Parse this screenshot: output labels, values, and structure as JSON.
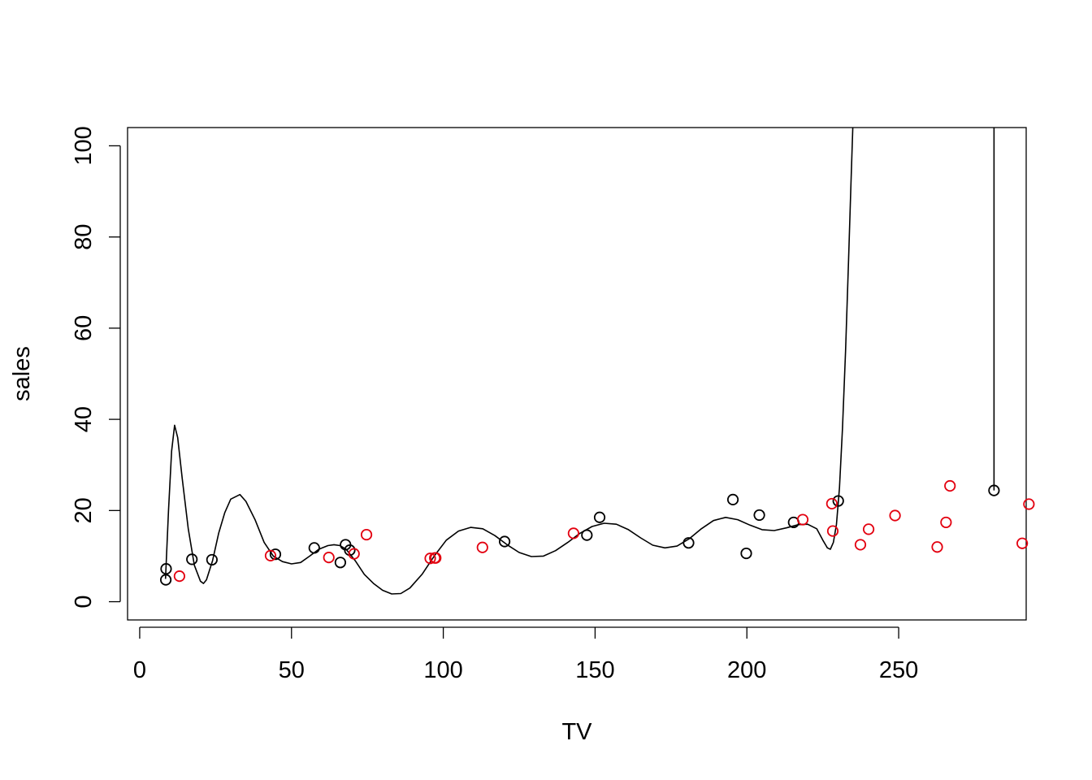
{
  "chart_data": {
    "type": "scatter",
    "title": "",
    "xlabel": "TV",
    "ylabel": "sales",
    "xlim": [
      -4,
      292
    ],
    "ylim": [
      -4,
      104
    ],
    "x_ticks": [
      0,
      50,
      100,
      150,
      200,
      250
    ],
    "y_ticks": [
      0,
      20,
      40,
      60,
      80,
      100
    ],
    "grid": false,
    "legend": "none",
    "series": [
      {
        "color": "#000000",
        "marker": "open-circle",
        "points": [
          [
            8.6,
            4.8
          ],
          [
            8.7,
            7.2
          ],
          [
            17.2,
            9.3
          ],
          [
            23.8,
            9.2
          ],
          [
            44.7,
            10.4
          ],
          [
            57.5,
            11.8
          ],
          [
            66.1,
            8.6
          ],
          [
            67.8,
            12.5
          ],
          [
            69.2,
            11.3
          ],
          [
            120.2,
            13.2
          ],
          [
            147.3,
            14.6
          ],
          [
            151.5,
            18.5
          ],
          [
            180.8,
            12.9
          ],
          [
            195.4,
            22.4
          ],
          [
            199.8,
            10.6
          ],
          [
            204.1,
            19.0
          ],
          [
            215.4,
            17.4
          ],
          [
            230.1,
            22.1
          ],
          [
            281.4,
            24.4
          ]
        ]
      },
      {
        "color": "#e3000f",
        "marker": "open-circle",
        "points": [
          [
            13.1,
            5.6
          ],
          [
            43.1,
            10.1
          ],
          [
            62.3,
            9.7
          ],
          [
            70.6,
            10.5
          ],
          [
            74.7,
            14.7
          ],
          [
            95.7,
            9.5
          ],
          [
            97.2,
            9.6
          ],
          [
            97.5,
            9.6
          ],
          [
            112.9,
            11.9
          ],
          [
            142.9,
            15.0
          ],
          [
            218.4,
            18.0
          ],
          [
            228.0,
            21.5
          ],
          [
            228.3,
            15.5
          ],
          [
            237.4,
            12.5
          ],
          [
            240.1,
            15.9
          ],
          [
            248.8,
            18.9
          ],
          [
            262.7,
            12.0
          ],
          [
            265.6,
            17.4
          ],
          [
            266.9,
            25.4
          ],
          [
            290.7,
            12.8
          ],
          [
            292.9,
            21.4
          ]
        ]
      }
    ],
    "fitted_curve": [
      [
        8.5,
        5.0
      ],
      [
        9.5,
        20.0
      ],
      [
        10.5,
        33.0
      ],
      [
        11.5,
        38.7
      ],
      [
        12.5,
        36.0
      ],
      [
        14.0,
        27.0
      ],
      [
        16.0,
        16.0
      ],
      [
        18.0,
        8.0
      ],
      [
        20.0,
        4.5
      ],
      [
        21.0,
        4.0
      ],
      [
        22.0,
        4.8
      ],
      [
        24.0,
        9.0
      ],
      [
        26.0,
        15.0
      ],
      [
        28.0,
        19.5
      ],
      [
        30.0,
        22.5
      ],
      [
        33.0,
        23.5
      ],
      [
        35.0,
        22.0
      ],
      [
        38.0,
        18.0
      ],
      [
        41.0,
        13.0
      ],
      [
        44.0,
        10.0
      ],
      [
        47.0,
        8.8
      ],
      [
        50.0,
        8.3
      ],
      [
        53.0,
        8.6
      ],
      [
        56.0,
        10.0
      ],
      [
        59.0,
        11.5
      ],
      [
        62.0,
        12.3
      ],
      [
        64.0,
        12.5
      ],
      [
        66.0,
        12.3
      ],
      [
        68.0,
        11.5
      ],
      [
        71.0,
        9.0
      ],
      [
        74.0,
        6.0
      ],
      [
        77.0,
        4.0
      ],
      [
        80.0,
        2.5
      ],
      [
        83.0,
        1.7
      ],
      [
        86.0,
        1.8
      ],
      [
        89.0,
        3.0
      ],
      [
        93.0,
        6.0
      ],
      [
        97.0,
        10.0
      ],
      [
        101.0,
        13.5
      ],
      [
        105.0,
        15.5
      ],
      [
        109.0,
        16.3
      ],
      [
        113.0,
        16.0
      ],
      [
        117.0,
        14.5
      ],
      [
        121.0,
        12.5
      ],
      [
        125.0,
        10.8
      ],
      [
        129.0,
        9.9
      ],
      [
        133.0,
        10.0
      ],
      [
        137.0,
        11.2
      ],
      [
        141.0,
        13.0
      ],
      [
        145.0,
        15.0
      ],
      [
        149.0,
        16.5
      ],
      [
        153.0,
        17.2
      ],
      [
        157.0,
        17.0
      ],
      [
        161.0,
        15.8
      ],
      [
        165.0,
        14.0
      ],
      [
        169.0,
        12.4
      ],
      [
        173.0,
        11.8
      ],
      [
        177.0,
        12.2
      ],
      [
        181.0,
        13.8
      ],
      [
        185.0,
        16.0
      ],
      [
        189.0,
        17.8
      ],
      [
        193.0,
        18.5
      ],
      [
        197.0,
        18.0
      ],
      [
        201.0,
        16.8
      ],
      [
        205.0,
        15.8
      ],
      [
        209.0,
        15.6
      ],
      [
        213.0,
        16.2
      ],
      [
        217.0,
        16.9
      ],
      [
        220.0,
        17.0
      ],
      [
        223.0,
        16.0
      ],
      [
        225.0,
        13.5
      ],
      [
        226.5,
        11.8
      ],
      [
        227.5,
        11.5
      ],
      [
        228.5,
        13.0
      ],
      [
        229.5,
        17.0
      ],
      [
        230.5,
        25.0
      ],
      [
        231.5,
        38.0
      ],
      [
        232.5,
        55.0
      ],
      [
        233.5,
        75.0
      ],
      [
        234.3,
        92.0
      ],
      [
        234.9,
        104.0
      ]
    ],
    "fitted_curve_tail": [
      [
        281.4,
        104.0
      ],
      [
        281.4,
        24.4
      ]
    ]
  }
}
